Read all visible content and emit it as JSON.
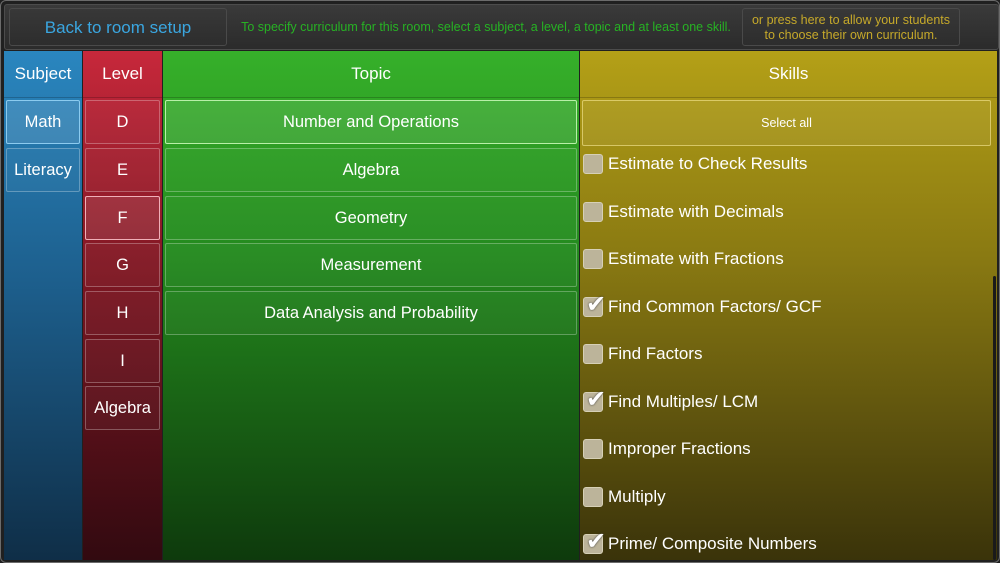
{
  "header": {
    "back_label": "Back to room setup",
    "instructions": "To specify curriculum for this room, select a subject, a level, a topic and at least one skill.",
    "own_curriculum_line1": "or press here to allow your students",
    "own_curriculum_line2": "to choose their own curriculum."
  },
  "subject": {
    "header": "Subject",
    "items": [
      {
        "label": "Math",
        "selected": true
      },
      {
        "label": "Literacy",
        "selected": false
      }
    ]
  },
  "level": {
    "header": "Level",
    "items": [
      {
        "label": "D",
        "selected": false
      },
      {
        "label": "E",
        "selected": false
      },
      {
        "label": "F",
        "selected": true
      },
      {
        "label": "G",
        "selected": false
      },
      {
        "label": "H",
        "selected": false
      },
      {
        "label": "I",
        "selected": false
      },
      {
        "label": "Algebra",
        "selected": false
      }
    ]
  },
  "topic": {
    "header": "Topic",
    "items": [
      {
        "label": "Number and Operations",
        "selected": true
      },
      {
        "label": "Algebra",
        "selected": false
      },
      {
        "label": "Geometry",
        "selected": false
      },
      {
        "label": "Measurement",
        "selected": false
      },
      {
        "label": "Data Analysis and Probability",
        "selected": false
      }
    ]
  },
  "skills": {
    "header": "Skills",
    "select_all_label": "Select all",
    "items": [
      {
        "label": "Estimate to Check Results",
        "checked": false
      },
      {
        "label": "Estimate with Decimals",
        "checked": false
      },
      {
        "label": "Estimate with Fractions",
        "checked": false
      },
      {
        "label": "Find Common Factors/ GCF",
        "checked": true
      },
      {
        "label": "Find Factors",
        "checked": false
      },
      {
        "label": "Find Multiples/ LCM",
        "checked": true
      },
      {
        "label": "Improper Fractions",
        "checked": false
      },
      {
        "label": "Multiply",
        "checked": false
      },
      {
        "label": "Prime/ Composite Numbers",
        "checked": true
      }
    ]
  },
  "colors": {
    "subject": "#2a86bf",
    "level": "#c7283b",
    "topic": "#36b02a",
    "skills": "#b4a017",
    "back_text": "#3aa6e0",
    "instructions_text": "#27b224",
    "own_curriculum_text": "#c6a92a"
  },
  "icons": {
    "checkmark": "check-icon"
  }
}
